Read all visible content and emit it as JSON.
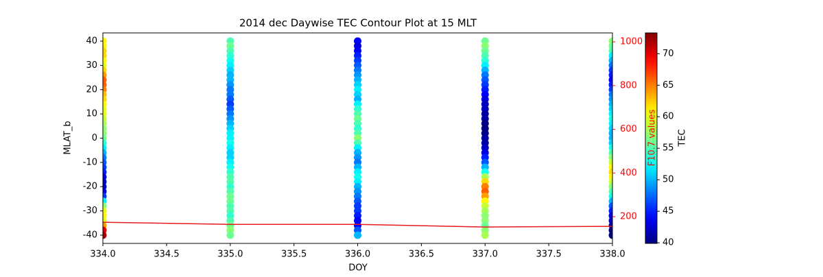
{
  "chart_data": {
    "type": "scatter",
    "title": "2014 dec Daywise TEC Contour Plot at 15 MLT",
    "xlabel": "DOY",
    "ylabel": "MLAT_b",
    "y2label": "F10.7 values",
    "colorbar_label": "TEC",
    "colormap": "jet",
    "y2color": "red",
    "xlim": [
      334,
      338
    ],
    "xticks": [
      {
        "value": 334,
        "label": "334.0"
      },
      {
        "value": 334.5,
        "label": "334.5"
      },
      {
        "value": 335,
        "label": "335.0"
      },
      {
        "value": 335.5,
        "label": "335.5"
      },
      {
        "value": 336,
        "label": "336.0"
      },
      {
        "value": 336.5,
        "label": "336.5"
      },
      {
        "value": 337,
        "label": "337.0"
      },
      {
        "value": 337.5,
        "label": "337.5"
      },
      {
        "value": 338,
        "label": "338.0"
      }
    ],
    "ylim": [
      -43.4,
      43.4
    ],
    "yticks": [
      -40,
      -30,
      -20,
      -10,
      0,
      10,
      20,
      30,
      40
    ],
    "y2lim": [
      78,
      1041
    ],
    "y2ticks": [
      200,
      400,
      600,
      800,
      1000
    ],
    "clim": [
      39.9,
      73.3
    ],
    "cticks": [
      40,
      45,
      50,
      55,
      60,
      65,
      70
    ],
    "mlat": [
      40,
      38,
      36,
      34,
      32,
      30,
      28,
      26,
      24,
      22,
      20,
      18,
      16,
      14,
      12,
      10,
      8,
      6,
      4,
      2,
      0,
      -2,
      -4,
      -6,
      -8,
      -10,
      -12,
      -14,
      -16,
      -18,
      -20,
      -22,
      -24,
      -26,
      -28,
      -30,
      -32,
      -34,
      -36,
      -38,
      -40
    ],
    "days": [
      {
        "doy": 334,
        "tec": [
          61,
          61,
          62,
          62,
          61,
          60,
          62,
          64,
          66,
          66,
          65,
          63,
          62,
          61,
          60,
          60,
          59,
          58,
          57,
          57,
          56,
          54,
          52,
          50,
          48,
          47,
          46,
          45,
          43,
          42,
          42,
          43,
          46,
          52,
          57,
          60,
          61,
          60,
          64,
          70,
          72
        ]
      },
      {
        "doy": 335,
        "tec": [
          55,
          56,
          55,
          54,
          53,
          52,
          51,
          50,
          50,
          49,
          48,
          48,
          47,
          46,
          47,
          48,
          49,
          50,
          51,
          52,
          52,
          53,
          52,
          51,
          51,
          52,
          53,
          54,
          55,
          55,
          54,
          55,
          56,
          56,
          55,
          55,
          54,
          55,
          56,
          57,
          56
        ]
      },
      {
        "doy": 336,
        "tec": [
          44,
          43,
          44,
          45,
          46,
          47,
          48,
          49,
          50,
          51,
          52,
          51,
          50,
          52,
          54,
          55,
          56,
          55,
          54,
          55,
          57,
          55,
          52,
          50,
          49,
          48,
          50,
          52,
          53,
          52,
          50,
          49,
          48,
          47,
          46,
          46,
          45,
          44,
          44,
          47,
          50
        ]
      },
      {
        "doy": 337,
        "tec": [
          56,
          57,
          56,
          55,
          54,
          52,
          50,
          48,
          47,
          46,
          45,
          44,
          43,
          42,
          42,
          41,
          41,
          40,
          40,
          40,
          41,
          41,
          42,
          43,
          45,
          47,
          50,
          53,
          58,
          62,
          65,
          66,
          64,
          61,
          59,
          58,
          57,
          57,
          56,
          57,
          58
        ]
      },
      {
        "doy": 338,
        "tec": [
          57,
          56,
          55,
          52,
          50,
          48,
          46,
          45,
          44,
          45,
          46,
          48,
          49,
          50,
          51,
          52,
          53,
          52,
          51,
          50,
          50,
          51,
          53,
          55,
          57,
          59,
          61,
          62,
          61,
          59,
          57,
          55,
          53,
          50,
          47,
          45,
          43,
          42,
          41,
          40,
          40
        ]
      }
    ],
    "line": {
      "color": "#e41a1c",
      "axis": "y2",
      "x": [
        334,
        335,
        336,
        337,
        338
      ],
      "values": [
        175,
        165,
        165,
        153,
        156
      ]
    }
  }
}
